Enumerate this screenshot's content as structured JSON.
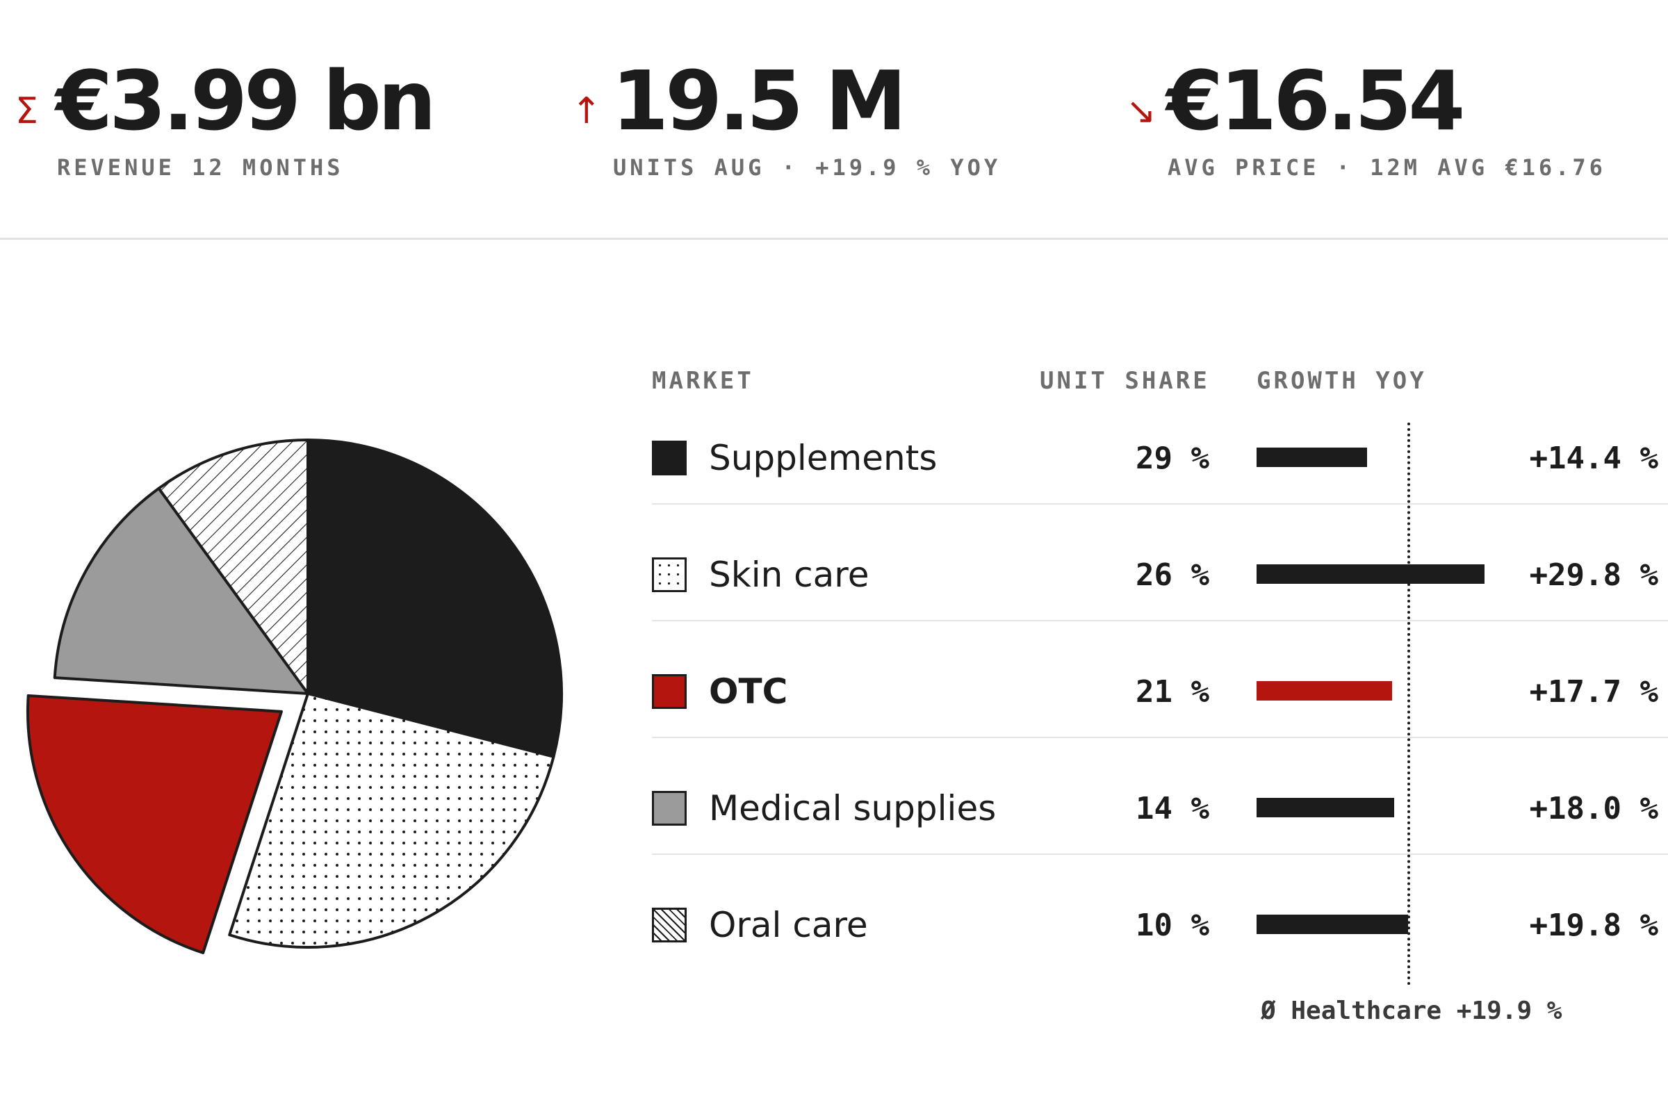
{
  "kpis": [
    {
      "icon": "sigma-icon",
      "icon_glyph": "Σ",
      "value": "€3.99 bn",
      "label": "REVENUE 12 MONTHS"
    },
    {
      "icon": "arrow-up-icon",
      "icon_glyph": "↑",
      "value": "19.5 M",
      "label": "UNITS AUG · +19.9 % YOY"
    },
    {
      "icon": "arrow-down-right-icon",
      "icon_glyph": "↘",
      "value": "€16.54",
      "label": "AVG PRICE · 12M AVG €16.76"
    }
  ],
  "table": {
    "headers": {
      "market": "MARKET",
      "share": "UNIT SHARE",
      "growth": "GROWTH YOY"
    },
    "rows": [
      {
        "name": "Supplements",
        "share_label": "29 %",
        "growth_label": "+14.4 %"
      },
      {
        "name": "Skin care",
        "share_label": "26 %",
        "growth_label": "+29.8 %"
      },
      {
        "name": "OTC",
        "share_label": "21 %",
        "growth_label": "+17.7 %"
      },
      {
        "name": "Medical supplies",
        "share_label": "14 %",
        "growth_label": "+18.0 %"
      },
      {
        "name": "Oral care",
        "share_label": "10 %",
        "growth_label": "+19.8 %"
      }
    ],
    "average_label": "Ø Healthcare +19.9 %"
  },
  "colors": {
    "ink": "#1c1c1c",
    "accent": "#b5150f",
    "grey": "#9b9b9b",
    "label_grey": "#6d6d6d"
  },
  "chart_data": {
    "type": "pie",
    "title": "",
    "categories": [
      "Supplements",
      "Skin care",
      "OTC",
      "Medical supplies",
      "Oral care"
    ],
    "values": [
      29,
      26,
      21,
      14,
      10
    ],
    "unit": "%",
    "highlighted": "OTC",
    "exploded_slice": "OTC",
    "fills": [
      "solid-dark",
      "dotted",
      "solid-red",
      "solid-grey",
      "hatched"
    ],
    "growth_yoy": {
      "type": "bar",
      "categories": [
        "Supplements",
        "Skin care",
        "OTC",
        "Medical supplies",
        "Oral care"
      ],
      "values": [
        14.4,
        29.8,
        17.7,
        18.0,
        19.8
      ],
      "unit": "%",
      "reference_line": {
        "label": "Ø Healthcare",
        "value": 19.9
      },
      "xlim": [
        0,
        30
      ]
    }
  }
}
